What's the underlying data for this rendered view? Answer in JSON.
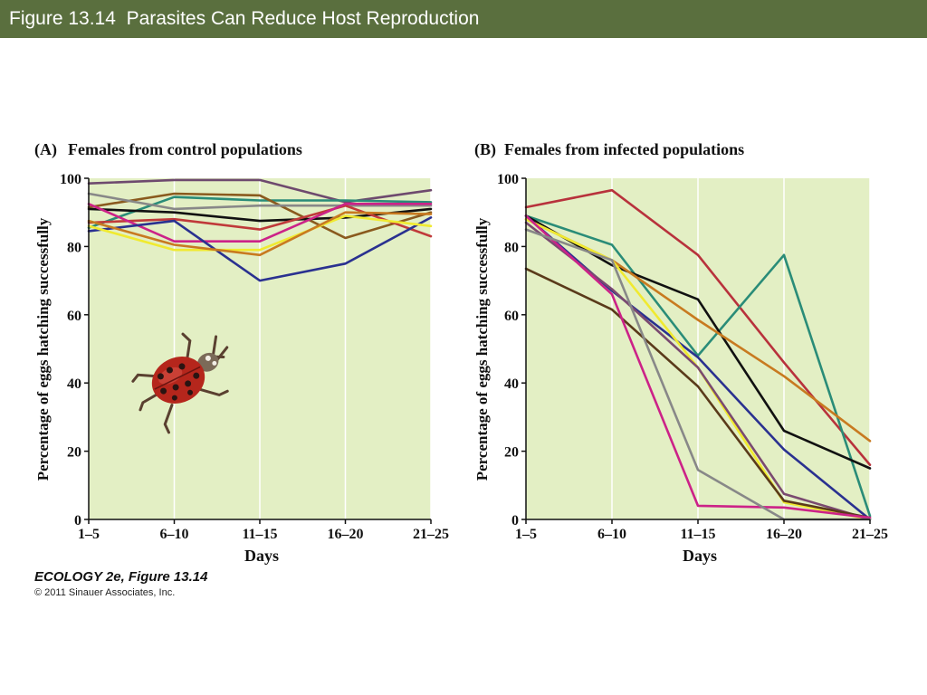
{
  "header": {
    "title": "Figure 13.14  Parasites Can Reduce Host Reproduction"
  },
  "footer": {
    "line1": "ECOLOGY 2e, Figure 13.14",
    "line2": "© 2011 Sinauer Associates, Inc."
  },
  "colors": {
    "header_bg": "#5a6f3e",
    "plot_bg": "#e3efc4"
  },
  "icons": {
    "decoration": "ladybug-icon"
  },
  "chart_data": [
    {
      "type": "line",
      "panel_label": "(A)",
      "title": "Females from control populations",
      "xlabel": "Days",
      "ylabel": "Percentage of eggs hatching successfully",
      "categories": [
        "1–5",
        "6–10",
        "11–15",
        "16–20",
        "21–25"
      ],
      "ylim": [
        0,
        100
      ],
      "yticks": [
        0,
        20,
        40,
        60,
        80,
        100
      ],
      "grid": "vertical",
      "series": [
        {
          "color": "#6e4a6e",
          "values": [
            98.5,
            99.5,
            99.5,
            93,
            96.5
          ]
        },
        {
          "color": "#2a8c78",
          "values": [
            85.5,
            94.5,
            93.5,
            93.5,
            93
          ]
        },
        {
          "color": "#8a5a1e",
          "values": [
            91.5,
            95.5,
            95,
            82.5,
            90
          ]
        },
        {
          "color": "#888888",
          "values": [
            95.5,
            91,
            92,
            92,
            92
          ]
        },
        {
          "color": "#111111",
          "values": [
            91,
            90,
            87.5,
            88.5,
            91
          ]
        },
        {
          "color": "#c03a3a",
          "values": [
            87,
            88,
            85,
            92,
            83
          ]
        },
        {
          "color": "#cc2288",
          "values": [
            92.5,
            81.5,
            81.5,
            92.5,
            92.5
          ]
        },
        {
          "color": "#2a3190",
          "values": [
            84.5,
            87.5,
            70,
            75,
            88.5
          ]
        },
        {
          "color": "#f0ea30",
          "values": [
            86,
            79,
            79,
            89,
            86
          ]
        },
        {
          "color": "#c87a20",
          "values": [
            87.5,
            80.5,
            77.5,
            90,
            89.5
          ]
        }
      ]
    },
    {
      "type": "line",
      "panel_label": "(B)",
      "title": "Females from infected populations",
      "xlabel": "Days",
      "ylabel": "Percentage of eggs hatching successfully",
      "categories": [
        "1–5",
        "6–10",
        "11–15",
        "16–20",
        "21–25"
      ],
      "ylim": [
        0,
        100
      ],
      "yticks": [
        0,
        20,
        40,
        60,
        80,
        100
      ],
      "grid": "vertical",
      "series": [
        {
          "color": "#b8323c",
          "values": [
            91.5,
            96.5,
            77.5,
            46,
            16
          ]
        },
        {
          "color": "#2a8c78",
          "values": [
            89,
            80.5,
            48,
            77.5,
            1
          ]
        },
        {
          "color": "#111111",
          "values": [
            89,
            74.5,
            64.5,
            26,
            15
          ]
        },
        {
          "color": "#c87a20",
          "values": [
            88,
            76,
            58.5,
            42,
            23
          ]
        },
        {
          "color": "#2a3190",
          "values": [
            89,
            67,
            47.5,
            20.5,
            0
          ]
        },
        {
          "color": "#f0ea30",
          "values": [
            88,
            76,
            44.5,
            5,
            0
          ]
        },
        {
          "color": "#7a4a70",
          "values": [
            87,
            67.5,
            44.5,
            7.5,
            0
          ]
        },
        {
          "color": "#5a3a1a",
          "values": [
            73.5,
            61.5,
            39,
            5.5,
            0.5
          ]
        },
        {
          "color": "#cc2288",
          "values": [
            89,
            66,
            4,
            3.5,
            0.5
          ]
        },
        {
          "color": "#888888",
          "values": [
            85,
            76,
            14.5,
            0,
            0
          ]
        }
      ]
    }
  ]
}
